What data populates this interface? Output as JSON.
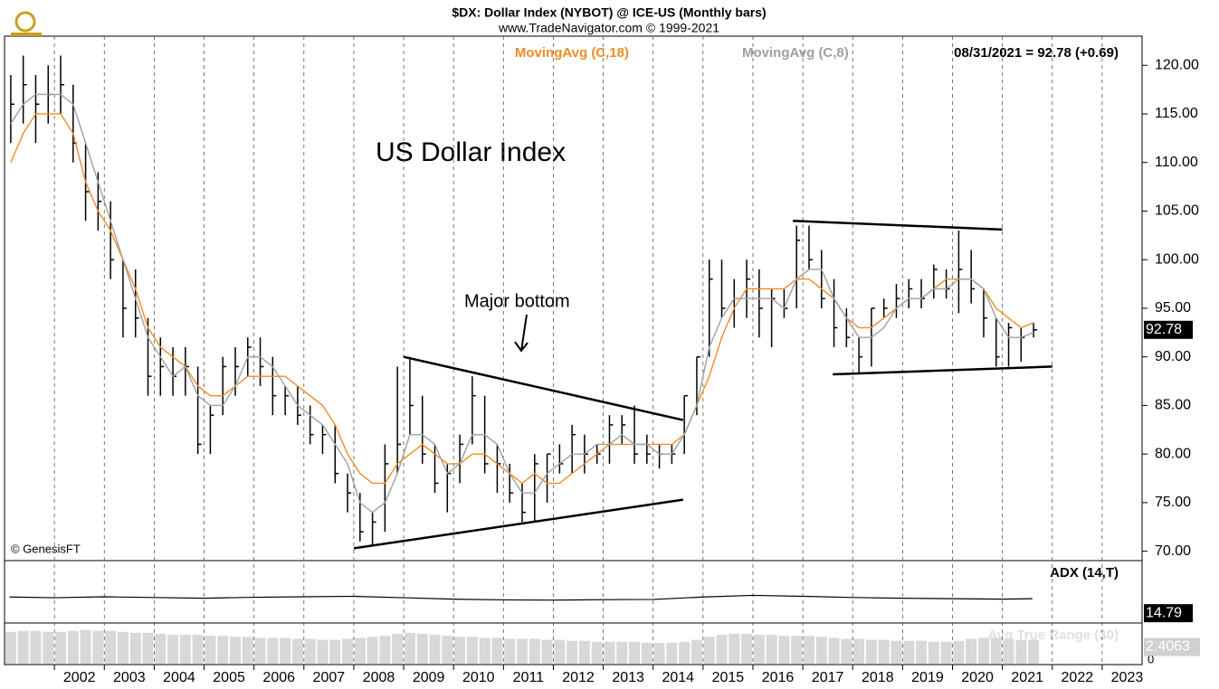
{
  "chart_data": {
    "type": "ohlc",
    "title": "$DX:  Dollar Index (NYBOT) @ ICE-US  (Monthly bars)",
    "subtitle": "www.TradeNavigator.com © 1999-2021",
    "annotation_main": "US Dollar Index",
    "annotation_bottom": "Major bottom",
    "copyright": "© GenesisFT",
    "status": "08/31/2021 = 92.78 (+0.69)",
    "last_value": 92.78,
    "last_value_label": "92.78",
    "xlim": [
      2001.0,
      2023.8
    ],
    "ylim": [
      69.5,
      123
    ],
    "xticks": [
      2002,
      2003,
      2004,
      2005,
      2006,
      2007,
      2008,
      2009,
      2010,
      2011,
      2012,
      2013,
      2014,
      2015,
      2016,
      2017,
      2018,
      2019,
      2020,
      2021,
      2022,
      2023
    ],
    "yticks": [
      {
        "value": 70,
        "label": "70.00"
      },
      {
        "value": 75,
        "label": "75.00"
      },
      {
        "value": 80,
        "label": "80.00"
      },
      {
        "value": 85,
        "label": "85.00"
      },
      {
        "value": 90,
        "label": "90.00"
      },
      {
        "value": 95,
        "label": "95.00"
      },
      {
        "value": 100,
        "label": "100.00"
      },
      {
        "value": 105,
        "label": "105.00"
      },
      {
        "value": 110,
        "label": "110.00"
      },
      {
        "value": 115,
        "label": "115.00"
      },
      {
        "value": 120,
        "label": "120.00"
      }
    ],
    "grid": true,
    "bar_color": "#000000",
    "x": [
      2001.125,
      2001.375,
      2001.625,
      2001.875,
      2002.125,
      2002.375,
      2002.625,
      2002.875,
      2003.125,
      2003.375,
      2003.625,
      2003.875,
      2004.125,
      2004.375,
      2004.625,
      2004.875,
      2005.125,
      2005.375,
      2005.625,
      2005.875,
      2006.125,
      2006.375,
      2006.625,
      2006.875,
      2007.125,
      2007.375,
      2007.625,
      2007.875,
      2008.125,
      2008.375,
      2008.625,
      2008.875,
      2009.125,
      2009.375,
      2009.625,
      2009.875,
      2010.125,
      2010.375,
      2010.625,
      2010.875,
      2011.125,
      2011.375,
      2011.625,
      2011.875,
      2012.125,
      2012.375,
      2012.625,
      2012.875,
      2013.125,
      2013.375,
      2013.625,
      2013.875,
      2014.125,
      2014.375,
      2014.625,
      2014.875,
      2015.125,
      2015.375,
      2015.625,
      2015.875,
      2016.125,
      2016.375,
      2016.625,
      2016.875,
      2017.125,
      2017.375,
      2017.625,
      2017.875,
      2018.125,
      2018.375,
      2018.625,
      2018.875,
      2019.125,
      2019.375,
      2019.625,
      2019.875,
      2020.125,
      2020.375,
      2020.625,
      2020.875,
      2021.125,
      2021.375,
      2021.625
    ],
    "high": [
      119,
      121,
      119,
      120,
      121,
      118,
      112,
      109,
      106,
      100,
      99,
      94,
      92,
      91,
      91,
      89,
      85,
      90,
      91,
      92,
      92,
      90,
      87,
      87,
      85,
      83,
      83,
      78,
      76,
      74,
      81,
      89,
      90,
      86,
      81,
      79,
      82,
      88,
      86,
      81,
      79,
      77,
      80,
      80,
      81,
      83,
      82,
      81,
      84,
      84,
      85,
      82,
      81,
      81,
      86,
      90,
      100,
      100,
      98,
      100,
      99,
      97,
      97,
      103.5,
      103.5,
      101,
      98,
      95,
      92,
      95,
      96,
      97.5,
      98,
      98,
      99.5,
      99,
      103,
      101,
      97,
      94,
      93.5,
      93,
      93.5
    ],
    "low": [
      112,
      114,
      112,
      114,
      115,
      110,
      104,
      103,
      98,
      92,
      92,
      86,
      86,
      86,
      86,
      80,
      80,
      84,
      86,
      88,
      87,
      84,
      84,
      83,
      81,
      80,
      77,
      74,
      71,
      70.5,
      72,
      78,
      82,
      79,
      76,
      74,
      77,
      81,
      78,
      76,
      75,
      73,
      73,
      75,
      78,
      78,
      78,
      79,
      79,
      81,
      79,
      79,
      78.5,
      79,
      80,
      84,
      90,
      94,
      93,
      94,
      92,
      91,
      94,
      95,
      99,
      95,
      91,
      91,
      88.3,
      89,
      94,
      94,
      95,
      95,
      96,
      96,
      94.5,
      95.5,
      92,
      89,
      89,
      89.5,
      92
    ],
    "close": [
      116,
      118,
      116,
      117,
      118,
      112,
      107,
      106,
      100,
      95,
      94,
      88,
      89,
      88,
      89,
      81,
      84,
      89,
      89,
      91,
      89,
      86,
      86,
      84,
      82,
      82,
      78,
      76,
      72,
      73,
      79,
      81,
      85,
      80,
      77,
      78,
      81,
      86,
      79,
      79,
      76,
      74,
      79,
      80,
      79,
      82,
      80,
      80,
      83,
      83,
      80,
      80,
      80,
      80,
      86,
      90,
      98,
      95,
      96,
      98,
      95,
      96,
      95,
      102,
      100,
      96,
      93,
      92,
      90,
      95,
      95,
      96,
      97,
      96,
      99,
      97,
      99,
      97,
      94,
      90,
      93,
      92,
      92.78
    ],
    "series": [
      {
        "name": "MovingAvg (C,18)",
        "color": "#f08c28",
        "values": [
          110,
          113,
          115,
          115,
          115,
          113,
          108,
          105,
          103,
          100,
          97,
          93,
          91,
          90,
          89,
          87,
          86,
          86,
          87,
          88,
          88,
          88,
          88,
          87,
          86,
          85,
          83,
          80,
          78,
          77,
          77,
          79,
          80,
          81,
          80,
          79,
          79,
          80,
          80,
          79,
          78,
          77,
          78,
          77,
          77,
          78,
          79,
          80,
          81,
          81,
          81,
          81,
          81,
          81,
          82,
          85,
          88,
          92,
          95,
          97,
          97,
          97,
          97,
          98,
          98,
          97,
          96,
          94,
          93,
          93,
          94,
          95,
          96,
          96,
          97,
          98,
          98,
          98,
          97,
          95,
          94,
          93,
          93.5
        ]
      },
      {
        "name": "MovingAvg (C,8)",
        "color": "#a0a0a0",
        "values": [
          114,
          116,
          117,
          117,
          117,
          116,
          112,
          108,
          104,
          100,
          96,
          92,
          90,
          88,
          89,
          86,
          85,
          85,
          87,
          90,
          90,
          89,
          87,
          85,
          84,
          83,
          81,
          79,
          75,
          74,
          75,
          78,
          82,
          82,
          81,
          78,
          79,
          82,
          82,
          81,
          78,
          76,
          76,
          78,
          79,
          80,
          80,
          81,
          81,
          82,
          81,
          81,
          80,
          80,
          82,
          85,
          91,
          94,
          96,
          96,
          96,
          96,
          95,
          98,
          99,
          99,
          96,
          94,
          92,
          92,
          93,
          95,
          96,
          96,
          97,
          97,
          98,
          98,
          97,
          94,
          92,
          92,
          92.5
        ]
      }
    ],
    "trendlines": [
      [
        2008.0,
        70.3,
        2014.6,
        75.3
      ],
      [
        2009.0,
        90,
        2014.6,
        83.5
      ],
      [
        2016.8,
        104,
        2021.0,
        103.1
      ],
      [
        2017.6,
        88.2,
        2022.0,
        89
      ]
    ],
    "adx": {
      "name": "ADX (14,T)",
      "value_label": "14.79",
      "last": 14.79,
      "ylim": [
        5,
        30
      ],
      "x": [
        2001.1,
        2002,
        2003,
        2004,
        2005,
        2006,
        2007,
        2008,
        2009,
        2010,
        2011,
        2012,
        2013,
        2014,
        2015,
        2016,
        2017,
        2018,
        2019,
        2020,
        2021,
        2021.6
      ],
      "values": [
        15.5,
        15.2,
        15.6,
        15.3,
        15.0,
        15.4,
        15.6,
        15.8,
        15.2,
        14.6,
        14.3,
        14.2,
        14.4,
        14.5,
        15.5,
        16.2,
        15.8,
        15.3,
        15.0,
        14.8,
        14.6,
        14.79
      ]
    },
    "atr": {
      "name": "Avg True Range (30)",
      "value_label": "2.4063",
      "last": 2.4063,
      "ylim": [
        0,
        4
      ],
      "yticks": [
        0
      ],
      "color": "#d8d8d8",
      "values": [
        3.2,
        3.3,
        3.3,
        3.2,
        3.2,
        3.3,
        3.4,
        3.3,
        3.3,
        3.2,
        3.1,
        3.1,
        3.0,
        2.9,
        2.9,
        2.9,
        2.8,
        2.8,
        2.7,
        2.7,
        2.6,
        2.6,
        2.6,
        2.5,
        2.5,
        2.4,
        2.4,
        2.5,
        2.6,
        2.7,
        2.8,
        3.0,
        3.1,
        3.0,
        2.9,
        2.8,
        2.7,
        2.7,
        2.6,
        2.6,
        2.5,
        2.5,
        2.5,
        2.4,
        2.4,
        2.3,
        2.3,
        2.2,
        2.2,
        2.2,
        2.2,
        2.1,
        2.1,
        2.1,
        2.2,
        2.4,
        2.7,
        2.9,
        3.0,
        3.0,
        2.9,
        2.9,
        2.8,
        2.8,
        2.8,
        2.7,
        2.6,
        2.5,
        2.5,
        2.4,
        2.4,
        2.3,
        2.3,
        2.3,
        2.2,
        2.2,
        2.3,
        2.5,
        2.6,
        2.6,
        2.5,
        2.4,
        2.4063
      ]
    }
  }
}
